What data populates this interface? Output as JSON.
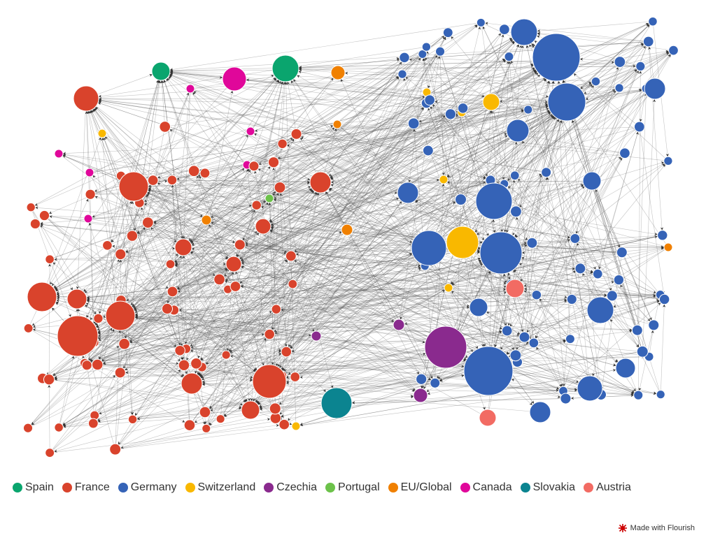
{
  "legend": [
    {
      "name": "Spain",
      "color": "#0aa56e"
    },
    {
      "name": "France",
      "color": "#d9432c"
    },
    {
      "name": "Germany",
      "color": "#3563b7"
    },
    {
      "name": "Switzerland",
      "color": "#f9b800"
    },
    {
      "name": "Czechia",
      "color": "#8a2a8e"
    },
    {
      "name": "Portugal",
      "color": "#6cc24a"
    },
    {
      "name": "EU/Global",
      "color": "#f08000"
    },
    {
      "name": "Canada",
      "color": "#e0079a"
    },
    {
      "name": "Slovakia",
      "color": "#0b8490"
    },
    {
      "name": "Austria",
      "color": "#f26b63"
    }
  ],
  "footer": {
    "credit": "Made with Flourish"
  }
}
